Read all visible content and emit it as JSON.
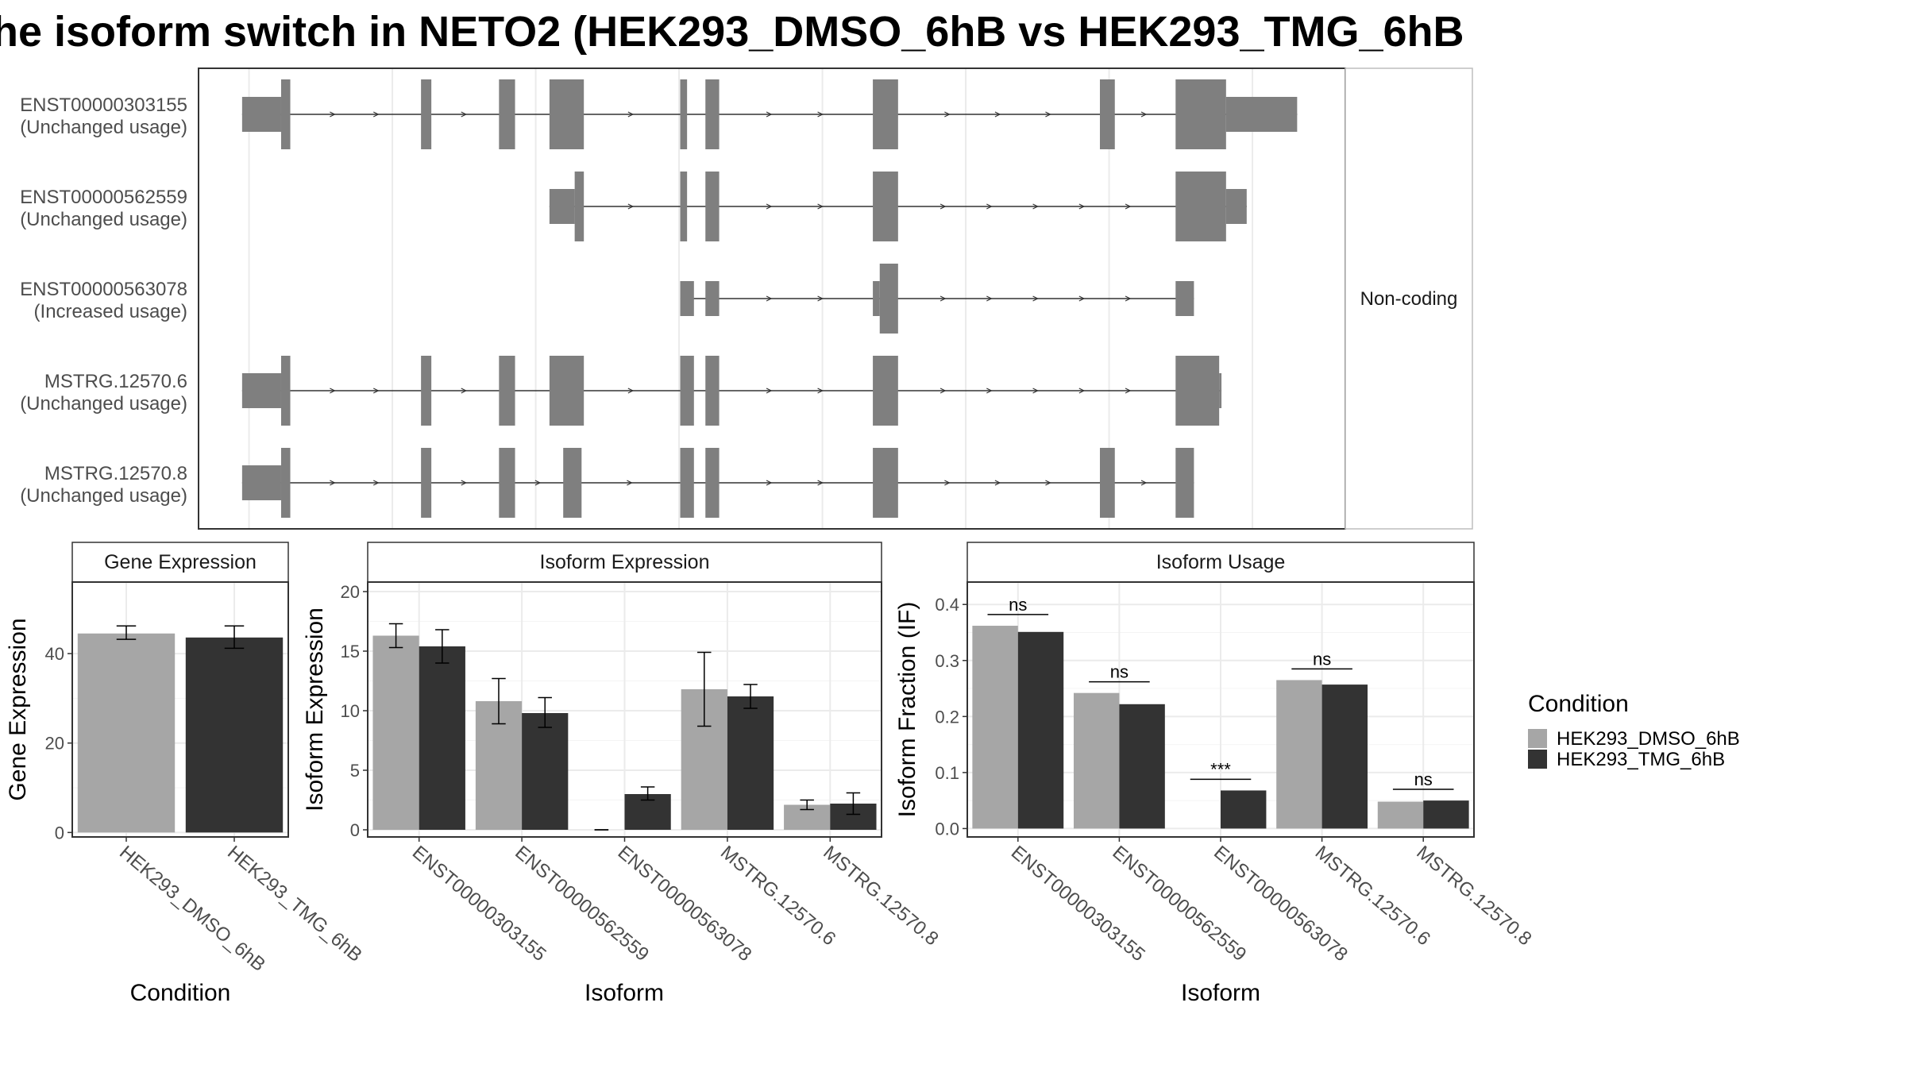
{
  "title": "he isoform switch in NETO2 (HEK293_DMSO_6hB vs HEK293_TMG_6hB",
  "colors": {
    "dmso": "#a6a6a6",
    "tmg": "#333333",
    "exon": "#7f7f7f",
    "grid": "#ebebeb",
    "border": "#333333",
    "strip_bg": "#ffffff",
    "text": "#4d4d4d"
  },
  "chart_data": [
    {
      "type": "gene-structure",
      "panel": "isoform-structures",
      "annotation_label": "Non-coding",
      "transcripts": [
        {
          "id": "ENST00000303155",
          "status": "(Unchanged usage)",
          "noncoding": false,
          "exons": [
            [
              0.038,
              0.072,
              "thin"
            ],
            [
              0.072,
              0.08,
              "thick"
            ],
            [
              0.194,
              0.203,
              "thick"
            ],
            [
              0.262,
              0.276,
              "thick"
            ],
            [
              0.306,
              0.336,
              "thick"
            ],
            [
              0.42,
              0.426,
              "thick"
            ],
            [
              0.442,
              0.454,
              "thick"
            ],
            [
              0.588,
              0.61,
              "thick"
            ],
            [
              0.786,
              0.799,
              "thick"
            ],
            [
              0.852,
              0.896,
              "thick"
            ],
            [
              0.896,
              0.958,
              "thin"
            ]
          ]
        },
        {
          "id": "ENST00000562559",
          "status": "(Unchanged usage)",
          "noncoding": false,
          "exons": [
            [
              0.306,
              0.328,
              "thin"
            ],
            [
              0.328,
              0.336,
              "thick"
            ],
            [
              0.42,
              0.426,
              "thick"
            ],
            [
              0.442,
              0.454,
              "thick"
            ],
            [
              0.588,
              0.61,
              "thick"
            ],
            [
              0.852,
              0.896,
              "thick"
            ],
            [
              0.896,
              0.914,
              "thin"
            ]
          ]
        },
        {
          "id": "ENST00000563078",
          "status": "(Increased usage)",
          "noncoding": true,
          "exons": [
            [
              0.42,
              0.432,
              "thin"
            ],
            [
              0.442,
              0.454,
              "thin"
            ],
            [
              0.588,
              0.594,
              "thin"
            ],
            [
              0.594,
              0.61,
              "thick"
            ],
            [
              0.852,
              0.868,
              "thin"
            ]
          ]
        },
        {
          "id": "MSTRG.12570.6",
          "status": "(Unchanged usage)",
          "noncoding": false,
          "exons": [
            [
              0.038,
              0.072,
              "thin"
            ],
            [
              0.072,
              0.08,
              "thick"
            ],
            [
              0.194,
              0.203,
              "thick"
            ],
            [
              0.262,
              0.276,
              "thick"
            ],
            [
              0.306,
              0.336,
              "thick"
            ],
            [
              0.42,
              0.432,
              "thick"
            ],
            [
              0.442,
              0.454,
              "thick"
            ],
            [
              0.588,
              0.61,
              "thick"
            ],
            [
              0.852,
              0.89,
              "thick"
            ],
            [
              0.89,
              0.892,
              "thin"
            ]
          ]
        },
        {
          "id": "MSTRG.12570.8",
          "status": "(Unchanged usage)",
          "noncoding": false,
          "exons": [
            [
              0.038,
              0.072,
              "thin"
            ],
            [
              0.072,
              0.08,
              "thick"
            ],
            [
              0.194,
              0.203,
              "thick"
            ],
            [
              0.262,
              0.276,
              "thick"
            ],
            [
              0.318,
              0.334,
              "thick"
            ],
            [
              0.42,
              0.432,
              "thick"
            ],
            [
              0.442,
              0.454,
              "thick"
            ],
            [
              0.588,
              0.61,
              "thick"
            ],
            [
              0.786,
              0.799,
              "thick"
            ],
            [
              0.852,
              0.868,
              "thick"
            ]
          ]
        }
      ]
    },
    {
      "type": "bar",
      "panel": "gene-expression",
      "strip_title": "Gene Expression",
      "xlabel": "Condition",
      "ylabel": "Gene Expression",
      "ylim": [
        -1,
        56
      ],
      "yticks": [
        0,
        20,
        40
      ],
      "categories": [
        "HEK293_DMSO_6hB",
        "HEK293_TMG_6hB"
      ],
      "values": [
        44.5,
        43.6
      ],
      "errors": [
        [
          43.2,
          46.2
        ],
        [
          41.2,
          46.2
        ]
      ]
    },
    {
      "type": "bar",
      "panel": "isoform-expression",
      "strip_title": "Isoform Expression",
      "xlabel": "Isoform",
      "ylabel": "Isoform Expression",
      "ylim": [
        -0.6,
        20.8
      ],
      "yticks": [
        0,
        5,
        10,
        15,
        20
      ],
      "categories": [
        "ENST00000303155",
        "ENST00000562559",
        "ENST00000563078",
        "MSTRG.12570.6",
        "MSTRG.12570.8"
      ],
      "series": [
        {
          "name": "HEK293_DMSO_6hB",
          "values": [
            16.3,
            10.8,
            0.0,
            11.8,
            2.1
          ],
          "errors": [
            [
              15.3,
              17.3
            ],
            [
              8.9,
              12.7
            ],
            [
              0.0,
              0.0
            ],
            [
              8.7,
              14.9
            ],
            [
              1.7,
              2.5
            ]
          ]
        },
        {
          "name": "HEK293_TMG_6hB",
          "values": [
            15.4,
            9.8,
            3.0,
            11.2,
            2.2
          ],
          "errors": [
            [
              14.0,
              16.8
            ],
            [
              8.6,
              11.1
            ],
            [
              2.5,
              3.6
            ],
            [
              10.2,
              12.2
            ],
            [
              1.3,
              3.1
            ]
          ]
        }
      ]
    },
    {
      "type": "bar",
      "panel": "isoform-usage",
      "strip_title": "Isoform Usage",
      "xlabel": "Isoform",
      "ylabel": "Isoform Fraction (IF)",
      "ylim": [
        -0.015,
        0.44
      ],
      "yticks": [
        0.0,
        0.1,
        0.2,
        0.3,
        0.4
      ],
      "ytick_labels": [
        "0.0",
        "0.1",
        "0.2",
        "0.3",
        "0.4"
      ],
      "categories": [
        "ENST00000303155",
        "ENST00000562559",
        "ENST00000563078",
        "MSTRG.12570.6",
        "MSTRG.12570.8"
      ],
      "series": [
        {
          "name": "HEK293_DMSO_6hB",
          "values": [
            0.362,
            0.242,
            0.0,
            0.265,
            0.048
          ]
        },
        {
          "name": "HEK293_TMG_6hB",
          "values": [
            0.351,
            0.222,
            0.068,
            0.257,
            0.05
          ]
        }
      ],
      "significance": [
        {
          "label": "ns",
          "y": 0.382
        },
        {
          "label": "ns",
          "y": 0.262
        },
        {
          "label": "***",
          "y": 0.088
        },
        {
          "label": "ns",
          "y": 0.285
        },
        {
          "label": "ns",
          "y": 0.07
        }
      ]
    }
  ],
  "legend": {
    "title": "Condition",
    "items": [
      {
        "label": "HEK293_DMSO_6hB",
        "color": "#a6a6a6"
      },
      {
        "label": "HEK293_TMG_6hB",
        "color": "#333333"
      }
    ]
  }
}
